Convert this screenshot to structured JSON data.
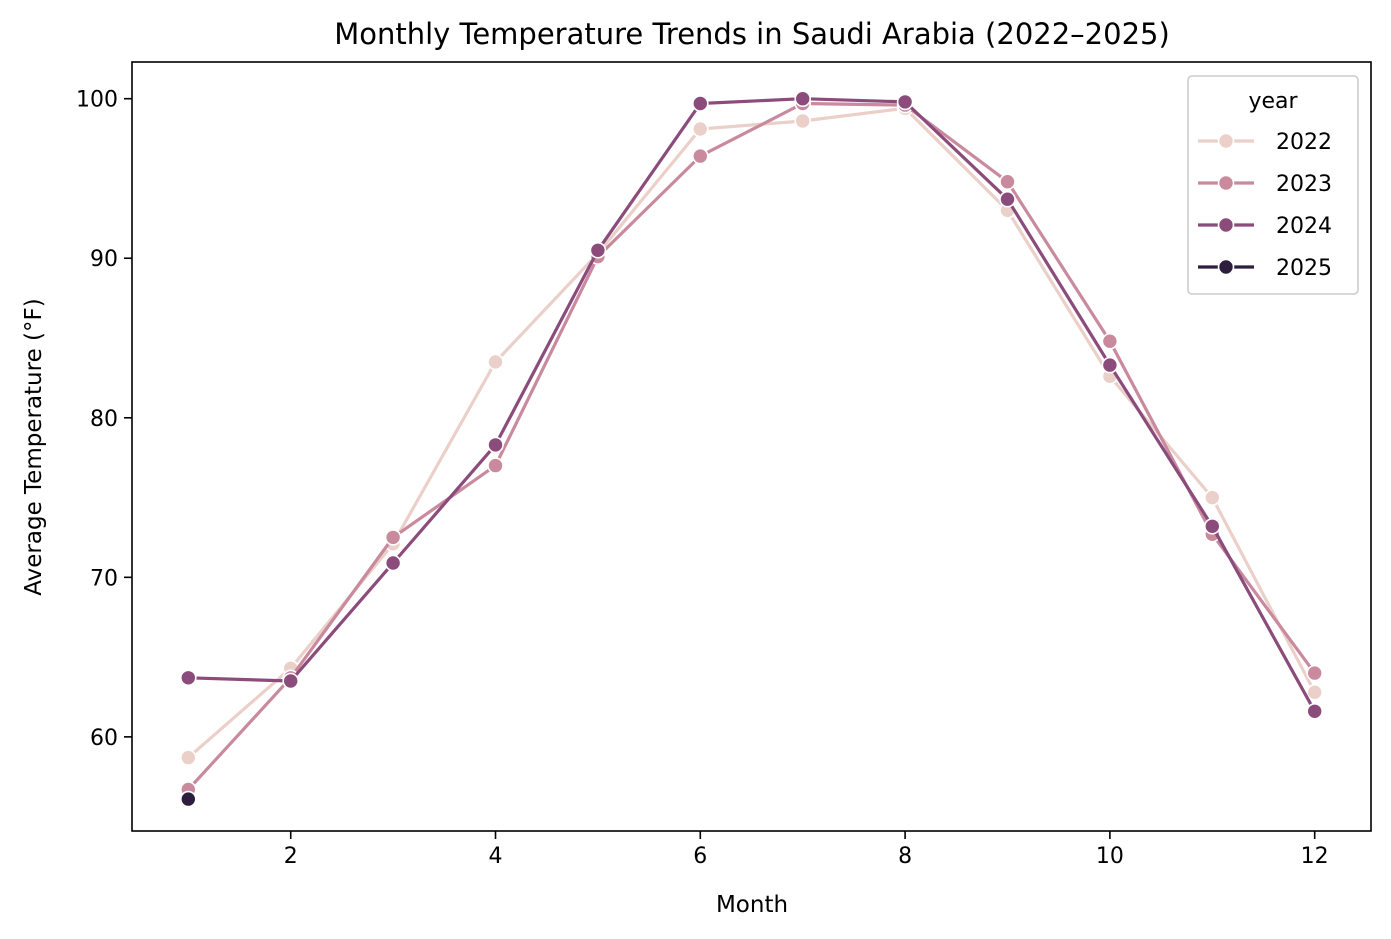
{
  "chart_data": {
    "type": "line",
    "title": "Monthly Temperature Trends in Saudi Arabia (2022–2025)",
    "xlabel": "Month",
    "ylabel": "Average Temperature (°F)",
    "xlim": [
      0.45,
      12.55
    ],
    "ylim": [
      54.1,
      102.3
    ],
    "xticks": [
      2,
      4,
      6,
      8,
      10,
      12
    ],
    "yticks": [
      60,
      70,
      80,
      90,
      100
    ],
    "grid": false,
    "legend": {
      "title": "year",
      "placement": "top-right"
    },
    "series": [
      {
        "name": "2022",
        "color": "#ebd0c9",
        "x": [
          1,
          2,
          3,
          4,
          5,
          6,
          7,
          8,
          9,
          10,
          11,
          12
        ],
        "y": [
          58.7,
          64.3,
          72.1,
          83.5,
          90.3,
          98.1,
          98.6,
          99.4,
          93.0,
          82.6,
          75.0,
          62.8
        ]
      },
      {
        "name": "2023",
        "color": "#c98a9e",
        "x": [
          1,
          2,
          3,
          4,
          5,
          6,
          7,
          8,
          9,
          10,
          11,
          12
        ],
        "y": [
          56.7,
          63.7,
          72.5,
          77.0,
          90.1,
          96.4,
          99.7,
          99.6,
          94.8,
          84.8,
          72.7,
          64.0
        ]
      },
      {
        "name": "2024",
        "color": "#8b4b7b",
        "x": [
          1,
          2,
          3,
          4,
          5,
          6,
          7,
          8,
          9,
          10,
          11,
          12
        ],
        "y": [
          63.7,
          63.5,
          70.9,
          78.3,
          90.5,
          99.7,
          100.0,
          99.8,
          93.7,
          83.3,
          73.2,
          61.6
        ]
      },
      {
        "name": "2025",
        "color": "#2d1e3e",
        "x": [
          1
        ],
        "y": [
          56.1
        ]
      }
    ]
  }
}
